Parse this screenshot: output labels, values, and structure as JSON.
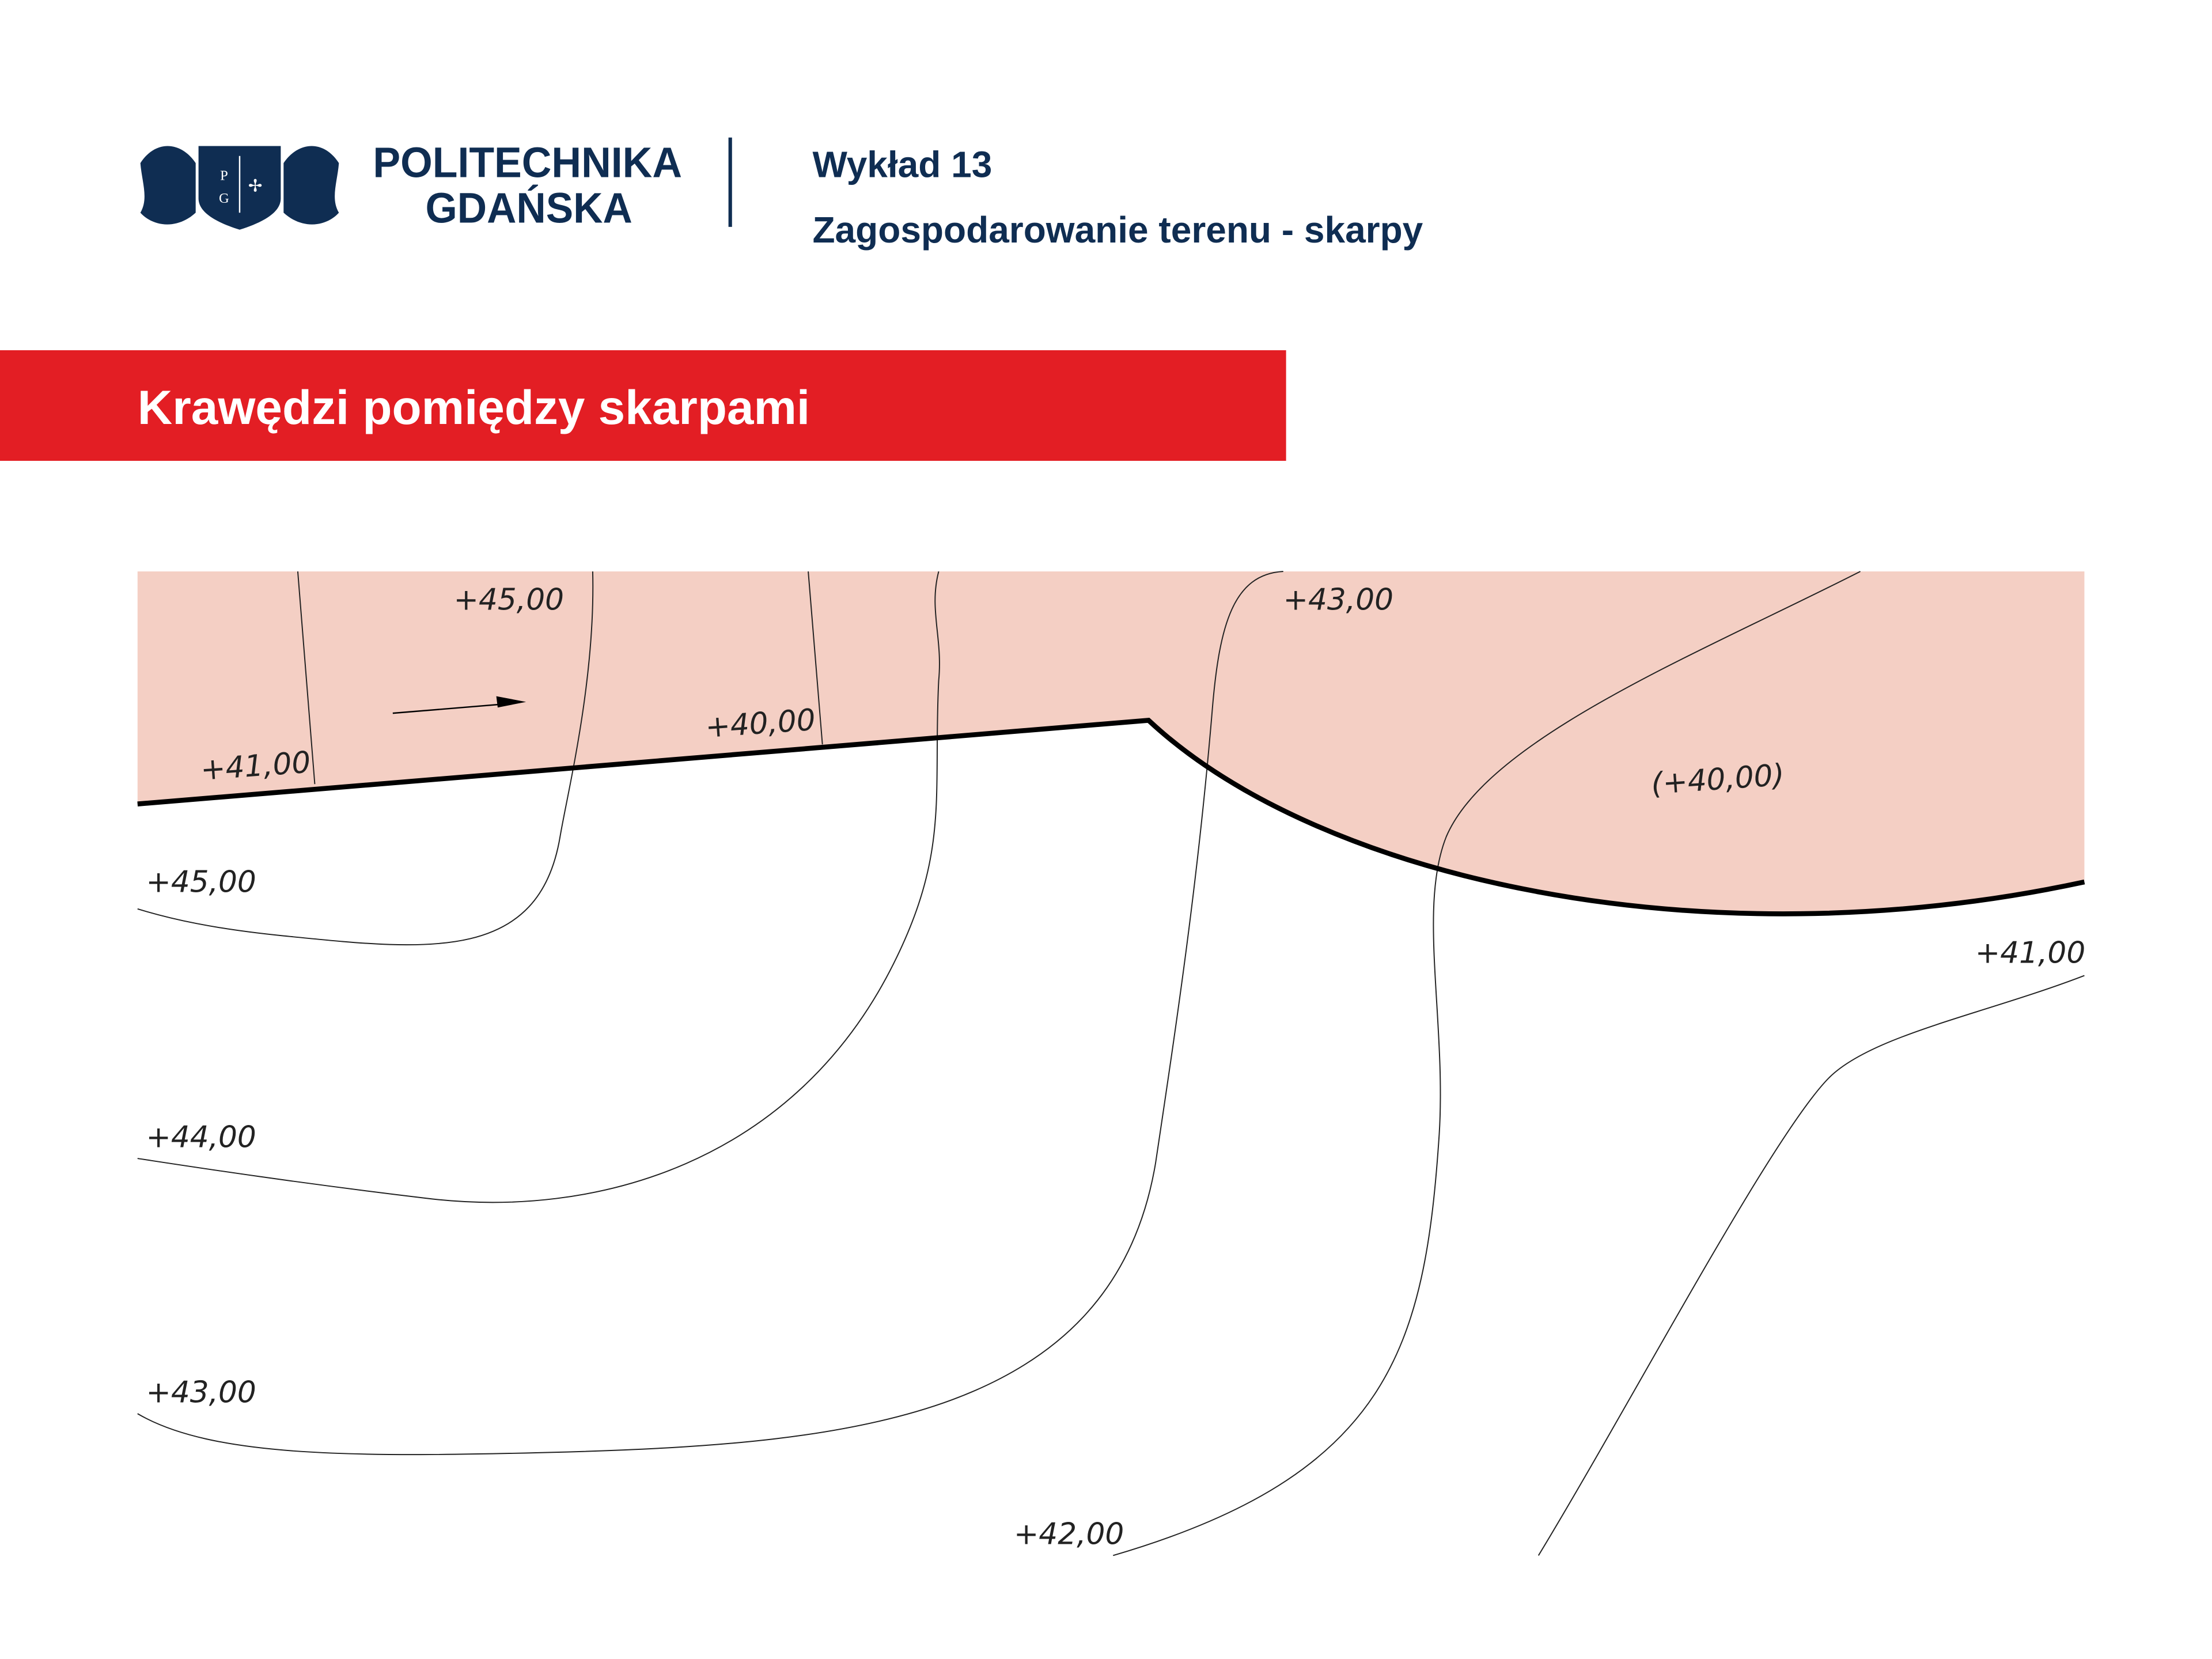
{
  "header": {
    "logo_letters": [
      "P",
      "G"
    ],
    "university": [
      "POLITECHNIKA",
      "GDAŃSKA"
    ],
    "lecture": "Wykład 13",
    "topic": "Zagospodarowanie terenu - skarpy"
  },
  "section_title": "Krawędzi pomiędzy skarpami",
  "drawing": {
    "labels": [
      "+45,00",
      "+43,00",
      "+41,00",
      "+40,00",
      "(+40,00)",
      "+45,00",
      "+41,00",
      "+44,00",
      "+43,00",
      "+42,00"
    ]
  }
}
